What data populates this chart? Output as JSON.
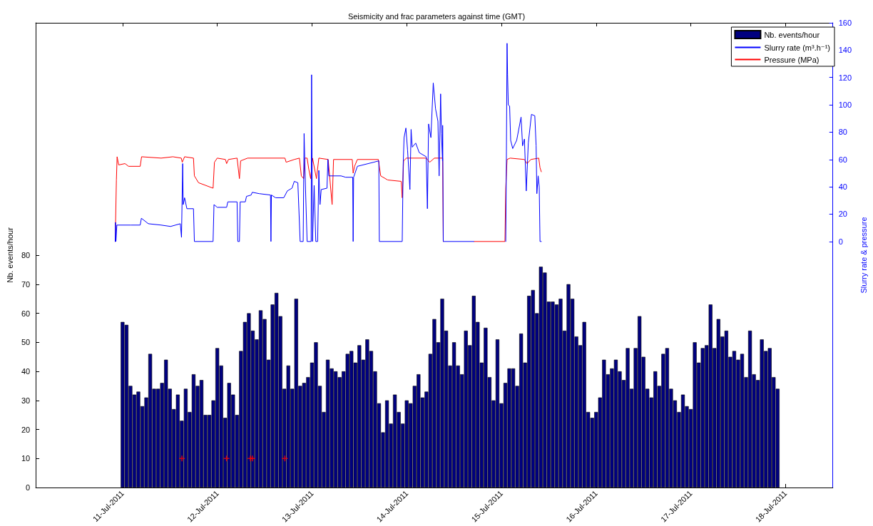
{
  "chart_data": {
    "type": "bar",
    "title": "Seismicity and frac parameters against time (GMT)",
    "ylabel": "Nb. events/hour",
    "y2label": "Slurry rate & pressure",
    "xlim": [
      "2011-07-10T02:00",
      "2011-07-18T12:00"
    ],
    "xticks": [
      {
        "value": "2011-07-11",
        "label": "11-Jul-2011"
      },
      {
        "value": "2011-07-12",
        "label": "12-Jul-2011"
      },
      {
        "value": "2011-07-13",
        "label": "13-Jul-2011"
      },
      {
        "value": "2011-07-14",
        "label": "14-Jul-2011"
      },
      {
        "value": "2011-07-15",
        "label": "15-Jul-2011"
      },
      {
        "value": "2011-07-16",
        "label": "16-Jul-2011"
      },
      {
        "value": "2011-07-17",
        "label": "17-Jul-2011"
      },
      {
        "value": "2011-07-18",
        "label": "18-Jul-2011"
      }
    ],
    "ylim": [
      0,
      160
    ],
    "yticks": [
      0,
      10,
      20,
      30,
      40,
      50,
      60,
      70,
      80
    ],
    "y2lim": [
      -180,
      160
    ],
    "y2ticks": [
      0,
      20,
      40,
      60,
      80,
      100,
      120,
      140,
      160
    ],
    "legend": "top right",
    "series": [
      {
        "name": "Nb. events/hour",
        "color": "#000080",
        "x": [
          "2011-07-11T00:00",
          "2011-07-11T01:00",
          "2011-07-11T02:00",
          "2011-07-11T03:00",
          "2011-07-11T04:00",
          "2011-07-11T05:00",
          "2011-07-11T06:00",
          "2011-07-11T07:00",
          "2011-07-11T08:00",
          "2011-07-11T09:00",
          "2011-07-11T10:00",
          "2011-07-11T11:00",
          "2011-07-11T12:00",
          "2011-07-11T13:00",
          "2011-07-11T14:00",
          "2011-07-11T15:00",
          "2011-07-11T16:00",
          "2011-07-11T17:00",
          "2011-07-11T18:00",
          "2011-07-11T19:00",
          "2011-07-11T20:00",
          "2011-07-11T21:00",
          "2011-07-11T22:00",
          "2011-07-11T23:00",
          "2011-07-12T00:00",
          "2011-07-12T01:00",
          "2011-07-12T02:00",
          "2011-07-12T03:00",
          "2011-07-12T04:00",
          "2011-07-12T05:00",
          "2011-07-12T06:00",
          "2011-07-12T07:00",
          "2011-07-12T08:00",
          "2011-07-12T09:00",
          "2011-07-12T10:00",
          "2011-07-12T11:00",
          "2011-07-12T12:00",
          "2011-07-12T13:00",
          "2011-07-12T14:00",
          "2011-07-12T15:00",
          "2011-07-12T16:00",
          "2011-07-12T17:00",
          "2011-07-12T18:00",
          "2011-07-12T19:00",
          "2011-07-12T20:00",
          "2011-07-12T21:00",
          "2011-07-12T22:00",
          "2011-07-12T23:00",
          "2011-07-13T00:00",
          "2011-07-13T01:00",
          "2011-07-13T02:00",
          "2011-07-13T03:00",
          "2011-07-13T04:00",
          "2011-07-13T05:00",
          "2011-07-13T06:00",
          "2011-07-13T07:00",
          "2011-07-13T08:00",
          "2011-07-13T09:00",
          "2011-07-13T10:00",
          "2011-07-13T11:00",
          "2011-07-13T12:00",
          "2011-07-13T13:00",
          "2011-07-13T14:00",
          "2011-07-13T15:00",
          "2011-07-13T16:00",
          "2011-07-13T17:00",
          "2011-07-13T18:00",
          "2011-07-13T19:00",
          "2011-07-13T20:00",
          "2011-07-13T21:00",
          "2011-07-13T22:00",
          "2011-07-13T23:00",
          "2011-07-14T00:00",
          "2011-07-14T01:00",
          "2011-07-14T02:00",
          "2011-07-14T03:00",
          "2011-07-14T04:00",
          "2011-07-14T05:00",
          "2011-07-14T06:00",
          "2011-07-14T07:00",
          "2011-07-14T08:00",
          "2011-07-14T09:00",
          "2011-07-14T10:00",
          "2011-07-14T11:00",
          "2011-07-14T12:00",
          "2011-07-14T13:00",
          "2011-07-14T14:00",
          "2011-07-14T15:00",
          "2011-07-14T16:00",
          "2011-07-14T17:00",
          "2011-07-14T18:00",
          "2011-07-14T19:00",
          "2011-07-14T20:00",
          "2011-07-14T21:00",
          "2011-07-14T22:00",
          "2011-07-14T23:00",
          "2011-07-15T00:00",
          "2011-07-15T01:00",
          "2011-07-15T02:00",
          "2011-07-15T03:00",
          "2011-07-15T04:00",
          "2011-07-15T05:00",
          "2011-07-15T06:00",
          "2011-07-15T07:00",
          "2011-07-15T08:00",
          "2011-07-15T09:00",
          "2011-07-15T10:00",
          "2011-07-15T11:00",
          "2011-07-15T12:00",
          "2011-07-15T13:00",
          "2011-07-15T14:00",
          "2011-07-15T15:00",
          "2011-07-15T16:00",
          "2011-07-15T17:00",
          "2011-07-15T18:00",
          "2011-07-15T19:00",
          "2011-07-15T20:00",
          "2011-07-15T21:00",
          "2011-07-15T22:00",
          "2011-07-15T23:00",
          "2011-07-16T00:00",
          "2011-07-16T01:00",
          "2011-07-16T02:00",
          "2011-07-16T03:00",
          "2011-07-16T04:00",
          "2011-07-16T05:00",
          "2011-07-16T06:00",
          "2011-07-16T07:00",
          "2011-07-16T08:00",
          "2011-07-16T09:00",
          "2011-07-16T10:00",
          "2011-07-16T11:00",
          "2011-07-16T12:00",
          "2011-07-16T13:00",
          "2011-07-16T14:00",
          "2011-07-16T15:00",
          "2011-07-16T16:00",
          "2011-07-16T17:00",
          "2011-07-16T18:00",
          "2011-07-16T19:00",
          "2011-07-16T20:00",
          "2011-07-16T21:00",
          "2011-07-16T22:00",
          "2011-07-16T23:00",
          "2011-07-17T00:00",
          "2011-07-17T01:00",
          "2011-07-17T02:00",
          "2011-07-17T03:00",
          "2011-07-17T04:00",
          "2011-07-17T05:00",
          "2011-07-17T06:00",
          "2011-07-17T07:00",
          "2011-07-17T08:00",
          "2011-07-17T09:00",
          "2011-07-17T10:00",
          "2011-07-17T11:00",
          "2011-07-17T12:00",
          "2011-07-17T13:00",
          "2011-07-17T14:00",
          "2011-07-17T15:00",
          "2011-07-17T16:00",
          "2011-07-17T17:00",
          "2011-07-17T18:00",
          "2011-07-17T19:00",
          "2011-07-17T20:00",
          "2011-07-17T21:00",
          "2011-07-17T22:00"
        ],
        "values": [
          57,
          56,
          35,
          32,
          33,
          28,
          31,
          46,
          34,
          34,
          36,
          44,
          34,
          27,
          32,
          23,
          34,
          26,
          39,
          35,
          37,
          25,
          25,
          30,
          48,
          42,
          24,
          36,
          32,
          25,
          47,
          57,
          60,
          54,
          51,
          61,
          58,
          44,
          63,
          67,
          59,
          34,
          42,
          34,
          65,
          35,
          36,
          38,
          43,
          50,
          35,
          26,
          44,
          41,
          40,
          38,
          40,
          46,
          47,
          43,
          49,
          44,
          51,
          47,
          40,
          29,
          19,
          30,
          22,
          32,
          26,
          22,
          30,
          29,
          35,
          39,
          31,
          33,
          46,
          58,
          50,
          65,
          54,
          42,
          50,
          42,
          39,
          54,
          49,
          66,
          57,
          43,
          55,
          38,
          30,
          51,
          29,
          36,
          41,
          41,
          35,
          53,
          43,
          66,
          68,
          60,
          76,
          74,
          64,
          64,
          63,
          65,
          54,
          70,
          65,
          52,
          49,
          57,
          26,
          24,
          26,
          31,
          44,
          39,
          41,
          44,
          40,
          37,
          48,
          34,
          48,
          59,
          45,
          34,
          31,
          40,
          35,
          46,
          48,
          34,
          30,
          26,
          32,
          28,
          27,
          50,
          43,
          48,
          49,
          63,
          48,
          58,
          52,
          54,
          45,
          47,
          44,
          46,
          38,
          54,
          39,
          37,
          51,
          47,
          48,
          38,
          34
        ]
      },
      {
        "type": "line",
        "name": "Slurry rate (m³.h⁻¹)",
        "color": "#0000ff",
        "axis": "y2",
        "marker": "none",
        "x": [
          "2011-07-10T22:08",
          "2011-07-10T22:12",
          "2011-07-10T22:19",
          "2011-07-10T22:33",
          "2011-07-11T02:06",
          "2011-07-11T04:28",
          "2011-07-11T04:46",
          "2011-07-11T06:32",
          "2011-07-11T09:47",
          "2011-07-11T12:10",
          "2011-07-11T14:38",
          "2011-07-11T14:56",
          "2011-07-11T15:14",
          "2011-07-11T15:22",
          "2011-07-11T15:43",
          "2011-07-11T16:18",
          "2011-07-11T17:58",
          "2011-07-11T18:12",
          "2011-07-11T22:56",
          "2011-07-11T23:10",
          "2011-07-11T23:59",
          "2011-07-12T02:22",
          "2011-07-12T02:40",
          "2011-07-12T05:01",
          "2011-07-12T05:12",
          "2011-07-12T05:37",
          "2011-07-12T05:48",
          "2011-07-12T07:06",
          "2011-07-12T07:24",
          "2011-07-12T08:35",
          "2011-07-12T08:52",
          "2011-07-12T10:39",
          "2011-07-12T13:29",
          "2011-07-12T13:36",
          "2011-07-12T13:43",
          "2011-07-12T14:47",
          "2011-07-12T16:51",
          "2011-07-12T17:45",
          "2011-07-12T18:56",
          "2011-07-12T19:31",
          "2011-07-12T20:25",
          "2011-07-12T21:00",
          "2011-07-12T21:46",
          "2011-07-12T22:00",
          "2011-07-12T22:22",
          "2011-07-12T22:46",
          "2011-07-12T23:47",
          "2011-07-12T23:54",
          "2011-07-13T00:08",
          "2011-07-13T00:33",
          "2011-07-13T00:58",
          "2011-07-13T01:26",
          "2011-07-13T01:44",
          "2011-07-13T02:02",
          "2011-07-13T02:20",
          "2011-07-13T03:48",
          "2011-07-13T04:02",
          "2011-07-13T04:16",
          "2011-07-13T07:21",
          "2011-07-13T08:32",
          "2011-07-13T10:19",
          "2011-07-13T10:26",
          "2011-07-13T10:33",
          "2011-07-13T11:30",
          "2011-07-13T15:38",
          "2011-07-13T16:56",
          "2011-07-13T17:04",
          "2011-07-13T22:52",
          "2011-07-13T23:06",
          "2011-07-13T23:20",
          "2011-07-13T23:48",
          "2011-07-14T00:13",
          "2011-07-14T00:49",
          "2011-07-14T01:07",
          "2011-07-14T01:24",
          "2011-07-14T02:17",
          "2011-07-14T03:11",
          "2011-07-14T03:46",
          "2011-07-14T04:57",
          "2011-07-14T05:15",
          "2011-07-14T05:33",
          "2011-07-14T06:08",
          "2011-07-14T06:44",
          "2011-07-14T07:19",
          "2011-07-14T07:55",
          "2011-07-14T08:13",
          "2011-07-14T08:36",
          "2011-07-14T08:48",
          "2011-07-14T09:05",
          "2011-07-14T09:07",
          "2011-07-14T09:16",
          "2011-07-14T17:01",
          "2011-07-14T20:00",
          "2011-07-15T01:06",
          "2011-07-15T01:14",
          "2011-07-15T01:26",
          "2011-07-15T01:34",
          "2011-07-15T01:45",
          "2011-07-15T02:05",
          "2011-07-15T02:21",
          "2011-07-15T02:52",
          "2011-07-15T03:52",
          "2011-07-15T04:59",
          "2011-07-15T05:22",
          "2011-07-15T05:50",
          "2011-07-15T06:18",
          "2011-07-15T06:49",
          "2011-07-15T07:37",
          "2011-07-15T08:28",
          "2011-07-15T08:48",
          "2011-07-15T08:59",
          "2011-07-15T09:19",
          "2011-07-15T09:35",
          "2011-07-15T09:47",
          "2011-07-15T10:07"
        ],
        "values": [
          0,
          14,
          0,
          12,
          12,
          12,
          17,
          13,
          12,
          11,
          13,
          3,
          57,
          27,
          32,
          24,
          24,
          0,
          0,
          27,
          25,
          25,
          29,
          29,
          0,
          0,
          29,
          29,
          33,
          34,
          36,
          35,
          34,
          0,
          34,
          32,
          32,
          37,
          39,
          44,
          43,
          0,
          0,
          79,
          38,
          0,
          0,
          122,
          0,
          41,
          0,
          0,
          52,
          27,
          38,
          39,
          60,
          48,
          48,
          47,
          47,
          0,
          47,
          55,
          58,
          59,
          0,
          0,
          55,
          76,
          83,
          67,
          38,
          82,
          69,
          72,
          65,
          64,
          62,
          24,
          86,
          76,
          116,
          97,
          88,
          48,
          108,
          79,
          59,
          85,
          0,
          0,
          null,
          0,
          47,
          145,
          122,
          100,
          99,
          74,
          68,
          74,
          91,
          70,
          75,
          37,
          72,
          93,
          92,
          70,
          35,
          48,
          40,
          0,
          0
        ]
      },
      {
        "type": "line",
        "name": "Pressure (MPa)",
        "color": "#ff0000",
        "axis": "y2",
        "marker": "none",
        "x": [
          "2011-07-10T22:08",
          "2011-07-10T22:26",
          "2011-07-10T22:37",
          "2011-07-10T23:01",
          "2011-07-11T00:37",
          "2011-07-11T01:31",
          "2011-07-11T04:28",
          "2011-07-11T04:49",
          "2011-07-11T09:47",
          "2011-07-11T12:45",
          "2011-07-11T14:53",
          "2011-07-11T15:07",
          "2011-07-11T15:43",
          "2011-07-11T17:58",
          "2011-07-11T18:12",
          "2011-07-11T19:15",
          "2011-07-11T22:56",
          "2011-07-11T23:17",
          "2011-07-11T23:59",
          "2011-07-12T02:04",
          "2011-07-12T02:22",
          "2011-07-12T02:50",
          "2011-07-12T05:01",
          "2011-07-12T05:37",
          "2011-07-12T05:55",
          "2011-07-12T07:41",
          "2011-07-12T17:09",
          "2011-07-12T17:27",
          "2011-07-12T19:31",
          "2011-07-12T20:49",
          "2011-07-12T21:18",
          "2011-07-12T21:53",
          "2011-07-12T22:11",
          "2011-07-12T22:46",
          "2011-07-12T23:11",
          "2011-07-12T23:40",
          "2011-07-13T00:08",
          "2011-07-13T01:08",
          "2011-07-13T01:44",
          "2011-07-13T04:06",
          "2011-07-13T05:06",
          "2011-07-13T05:28",
          "2011-07-13T10:12",
          "2011-07-13T10:26",
          "2011-07-13T10:47",
          "2011-07-13T11:30",
          "2011-07-13T16:49",
          "2011-07-13T17:25",
          "2011-07-13T19:11",
          "2011-07-13T22:37",
          "2011-07-13T22:52",
          "2011-07-13T23:13",
          "2011-07-13T23:55",
          "2011-07-14T04:57",
          "2011-07-14T05:50",
          "2011-07-14T07:01",
          "2011-07-14T09:07",
          "2011-07-14T09:16",
          "2011-07-14T12:00",
          "2011-07-14T17:05",
          "2011-07-15T00:54",
          "2011-07-15T01:06",
          "2011-07-15T01:26",
          "2011-07-15T02:13",
          "2011-07-15T05:50",
          "2011-07-15T06:30",
          "2011-07-15T07:28",
          "2011-07-15T09:28",
          "2011-07-15T09:47",
          "2011-07-15T10:07"
        ],
        "values": [
          0,
          45,
          62,
          56,
          57,
          55,
          55,
          62,
          61,
          62,
          61,
          58,
          62,
          61,
          48,
          43,
          39,
          58,
          61,
          60,
          57,
          60,
          61,
          46,
          59,
          61,
          61,
          58,
          60,
          61,
          48,
          46,
          61,
          61,
          53,
          46,
          61,
          46,
          61,
          60,
          27,
          60,
          60,
          50,
          55,
          60,
          60,
          48,
          45,
          44,
          32,
          59,
          61,
          61,
          58,
          61,
          61,
          0,
          null,
          0,
          0,
          39,
          60,
          61,
          60,
          57,
          60,
          61,
          54,
          51
        ]
      },
      {
        "type": "scatter",
        "color": "#ff0000",
        "marker": "cross",
        "x": [
          "2011-07-11T15:03",
          "2011-07-12T02:21",
          "2011-07-12T08:24",
          "2011-07-12T08:55",
          "2011-07-12T17:08"
        ],
        "values": [
          10,
          10,
          10,
          10,
          10
        ]
      }
    ]
  }
}
